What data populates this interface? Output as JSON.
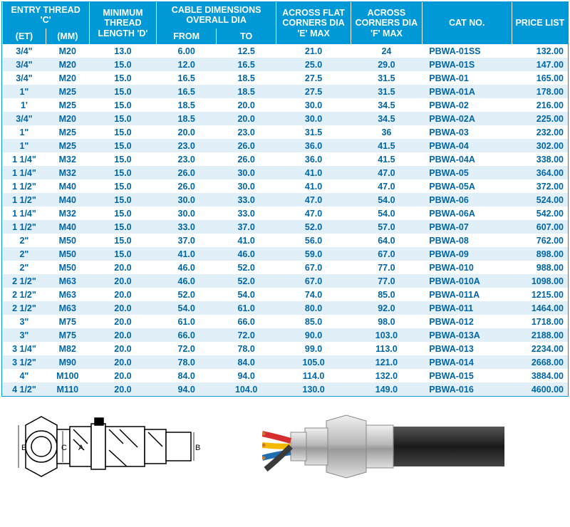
{
  "table": {
    "header_bg": "#0099d8",
    "header_fg": "#ffffff",
    "row_even_bg": "#ffffff",
    "row_odd_bg": "#e1eff8",
    "text_color": "#0066a8",
    "columns": {
      "entry_thread": "ENTRY THREAD 'C'",
      "et": "(ET)",
      "mm": "(MM)",
      "min_thread": "MINIMUM THREAD LENGTH 'D'",
      "cable_dim": "CABLE DIMENSIONS OVERALL DIA",
      "from": "FROM",
      "to": "TO",
      "flat": "ACROSS FLAT CORNERS DIA 'E' MAX",
      "corners": "ACROSS CORNERS DIA 'F' MAX",
      "cat": "CAT NO.",
      "price": "PRICE LIST"
    },
    "rows": [
      [
        "3/4\"",
        "M20",
        "13.0",
        "6.00",
        "12.5",
        "21.0",
        "24",
        "PBWA-01SS",
        "132.00"
      ],
      [
        "3/4\"",
        "M20",
        "15.0",
        "12.0",
        "16.5",
        "25.0",
        "29.0",
        "PBWA-01S",
        "147.00"
      ],
      [
        "3/4\"",
        "M20",
        "15.0",
        "16.5",
        "18.5",
        "27.5",
        "31.5",
        "PBWA-01",
        "165.00"
      ],
      [
        "1\"",
        "M25",
        "15.0",
        "16.5",
        "18.5",
        "27.5",
        "31.5",
        "PBWA-01A",
        "178.00"
      ],
      [
        "1'",
        "M25",
        "15.0",
        "18.5",
        "20.0",
        "30.0",
        "34.5",
        "PBWA-02",
        "216.00"
      ],
      [
        "3/4\"",
        "M20",
        "15.0",
        "18.5",
        "20.0",
        "30.0",
        "34.5",
        "PBWA-02A",
        "225.00"
      ],
      [
        "1\"",
        "M25",
        "15.0",
        "20.0",
        "23.0",
        "31.5",
        "36",
        "PBWA-03",
        "232.00"
      ],
      [
        "1\"",
        "M25",
        "15.0",
        "23.0",
        "26.0",
        "36.0",
        "41.5",
        "PBWA-04",
        "302.00"
      ],
      [
        "1 1/4\"",
        "M32",
        "15.0",
        "23.0",
        "26.0",
        "36.0",
        "41.5",
        "PBWA-04A",
        "338.00"
      ],
      [
        "1 1/4\"",
        "M32",
        "15.0",
        "26.0",
        "30.0",
        "41.0",
        "47.0",
        "PBWA-05",
        "364.00"
      ],
      [
        "1 1/2\"",
        "M40",
        "15.0",
        "26.0",
        "30.0",
        "41.0",
        "47.0",
        "PBWA-05A",
        "372.00"
      ],
      [
        "1 1/2\"",
        "M40",
        "15.0",
        "30.0",
        "33.0",
        "47.0",
        "54.0",
        "PBWA-06",
        "524.00"
      ],
      [
        "1 1/4\"",
        "M32",
        "15.0",
        "30.0",
        "33.0",
        "47.0",
        "54.0",
        "PBWA-06A",
        "542.00"
      ],
      [
        "1 1/2\"",
        "M40",
        "15.0",
        "33.0",
        "37.0",
        "52.0",
        "57.0",
        "PBWA-07",
        "607.00"
      ],
      [
        "2\"",
        "M50",
        "15.0",
        "37.0",
        "41.0",
        "56.0",
        "64.0",
        "PBWA-08",
        "762.00"
      ],
      [
        "2\"",
        "M50",
        "15.0",
        "41.0",
        "46.0",
        "59.0",
        "67.0",
        "PBWA-09",
        "898.00"
      ],
      [
        "2\"",
        "M50",
        "20.0",
        "46.0",
        "52.0",
        "67.0",
        "77.0",
        "PBWA-010",
        "988.00"
      ],
      [
        "2 1/2\"",
        "M63",
        "20.0",
        "46.0",
        "52.0",
        "67.0",
        "77.0",
        "PBWA-010A",
        "1098.00"
      ],
      [
        "2 1/2\"",
        "M63",
        "20.0",
        "52.0",
        "54.0",
        "74.0",
        "85.0",
        "PBWA-011A",
        "1215.00"
      ],
      [
        "2 1/2\"",
        "M63",
        "20.0",
        "54.0",
        "61.0",
        "80.0",
        "92.0",
        "PBWA-011",
        "1464.00"
      ],
      [
        "3\"",
        "M75",
        "20.0",
        "61.0",
        "66.0",
        "85.0",
        "98.0",
        "PBWA-012",
        "1718.00"
      ],
      [
        "3\"",
        "M75",
        "20.0",
        "66.0",
        "72.0",
        "90.0",
        "103.0",
        "PBWA-013A",
        "2188.00"
      ],
      [
        "3 1/4\"",
        "M82",
        "20.0",
        "72.0",
        "78.0",
        "99.0",
        "113.0",
        "PBWA-013",
        "2234.00"
      ],
      [
        "3 1/2\"",
        "M90",
        "20.0",
        "78.0",
        "84.0",
        "105.0",
        "121.0",
        "PBWA-014",
        "2668.00"
      ],
      [
        "4\"",
        "M100",
        "20.0",
        "84.0",
        "94.0",
        "114.0",
        "132.0",
        "PBWA-015",
        "3884.00"
      ],
      [
        "4 1/2\"",
        "M110",
        "20.0",
        "94.0",
        "104.0",
        "130.0",
        "149.0",
        "PBWA-016",
        "4600.00"
      ]
    ]
  },
  "diagram": {
    "labels": [
      "E",
      "C",
      "A",
      "B"
    ],
    "stroke": "#000000"
  },
  "photo": {
    "body_color": "#c8c8c8",
    "cable_color": "#2a2a2a",
    "wire_colors": [
      "#d62e2e",
      "#f5b800",
      "#1f6db3",
      "#3a3a3a"
    ]
  }
}
